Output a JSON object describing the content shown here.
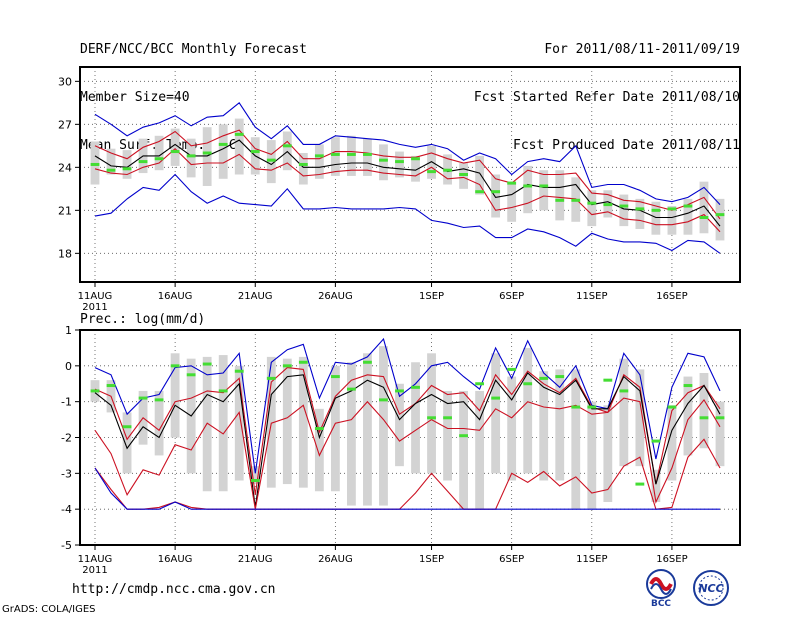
{
  "header": {
    "title": "DERF/NCC/BCC Monthly Forecast",
    "member_size": "Member Size=40",
    "variable": "Mean Surf. Temp.: °C",
    "period": "For 2011/08/11-2011/09/19",
    "started": "Fcst Started Refer Date 2011/08/10",
    "produced": "Fcst Produced Date 2011/08/11"
  },
  "footer": {
    "url": "http://cmdp.ncc.cma.gov.cn",
    "credit": "GrADS: COLA/IGES",
    "logo_left": "BCC",
    "logo_right": "NCC"
  },
  "colors": {
    "box": "#d3d3d3",
    "median": "#44dd33",
    "mean": "#000000",
    "spread": "#cc1122",
    "extreme": "#0000cc"
  },
  "chart_data": [
    {
      "type": "line",
      "title": "Mean Surf. Temp.: °C",
      "ylim": [
        16,
        31
      ],
      "yticks": [
        18,
        21,
        24,
        27,
        30
      ],
      "xticks": [
        {
          "day": 0,
          "label": "11AUG",
          "sub": "2011"
        },
        {
          "day": 5,
          "label": "16AUG"
        },
        {
          "day": 10,
          "label": "21AUG"
        },
        {
          "day": 15,
          "label": "26AUG"
        },
        {
          "day": 21,
          "label": "1SEP"
        },
        {
          "day": 26,
          "label": "6SEP"
        },
        {
          "day": 31,
          "label": "11SEP"
        },
        {
          "day": 36,
          "label": "16SEP"
        }
      ],
      "series": [
        {
          "name": "max",
          "values": [
            27.7,
            27.0,
            26.2,
            26.8,
            27.1,
            27.6,
            26.9,
            27.5,
            27.6,
            28.5,
            26.8,
            26.0,
            26.9,
            25.6,
            25.6,
            26.2,
            26.1,
            26.0,
            25.9,
            25.6,
            25.4,
            25.6,
            25.3,
            24.5,
            25.0,
            24.6,
            23.5,
            24.4,
            24.6,
            24.4,
            25.5,
            22.6,
            22.8,
            22.8,
            22.4,
            21.8,
            21.6,
            21.9,
            22.6,
            21.4
          ]
        },
        {
          "name": "upper",
          "values": [
            25.5,
            25.0,
            24.6,
            25.4,
            25.8,
            26.5,
            25.5,
            25.7,
            26.2,
            26.6,
            25.3,
            24.9,
            25.8,
            24.6,
            24.6,
            25.1,
            25.1,
            25.0,
            24.8,
            24.7,
            24.7,
            25.0,
            24.6,
            24.3,
            24.5,
            23.2,
            22.9,
            23.8,
            23.5,
            23.5,
            23.6,
            22.2,
            22.1,
            21.7,
            21.6,
            21.3,
            21.0,
            21.4,
            21.9,
            20.4
          ]
        },
        {
          "name": "mean",
          "values": [
            24.8,
            24.1,
            24.0,
            24.8,
            24.8,
            25.6,
            24.8,
            24.8,
            25.3,
            25.9,
            24.8,
            24.2,
            25.1,
            24.0,
            24.0,
            24.2,
            24.3,
            24.3,
            24.0,
            23.9,
            23.8,
            24.4,
            23.7,
            23.9,
            23.6,
            21.9,
            22.1,
            22.8,
            22.6,
            22.6,
            22.8,
            21.4,
            21.6,
            21.1,
            21.0,
            20.5,
            20.5,
            20.8,
            21.3,
            19.9
          ]
        },
        {
          "name": "lower",
          "values": [
            23.9,
            23.6,
            23.5,
            24.0,
            24.3,
            25.3,
            24.2,
            24.3,
            24.3,
            24.9,
            23.9,
            23.8,
            24.3,
            23.4,
            23.5,
            23.7,
            23.8,
            23.8,
            23.6,
            23.5,
            23.4,
            24.0,
            23.2,
            23.3,
            22.8,
            21.0,
            21.2,
            21.5,
            22.0,
            21.9,
            21.8,
            20.7,
            20.9,
            20.4,
            20.3,
            20.0,
            20.0,
            20.2,
            20.7,
            19.5
          ]
        },
        {
          "name": "min",
          "values": [
            20.6,
            20.8,
            21.8,
            22.6,
            22.4,
            23.5,
            22.3,
            21.5,
            22.0,
            21.5,
            21.4,
            21.3,
            22.5,
            21.1,
            21.1,
            21.2,
            21.1,
            21.1,
            21.1,
            21.2,
            21.1,
            20.3,
            20.1,
            19.8,
            19.9,
            19.1,
            19.1,
            19.7,
            19.5,
            19.1,
            18.5,
            19.4,
            19.0,
            18.8,
            18.8,
            18.7,
            18.2,
            18.9,
            18.8,
            18.0
          ]
        }
      ],
      "boxes": {
        "low": [
          22.8,
          23.5,
          23.2,
          23.6,
          23.8,
          24.1,
          23.3,
          22.7,
          23.2,
          23.5,
          23.5,
          22.9,
          23.8,
          22.8,
          23.2,
          23.4,
          23.4,
          23.4,
          23.1,
          23.3,
          23.0,
          23.2,
          22.8,
          22.5,
          22.1,
          20.5,
          20.2,
          20.8,
          21.0,
          20.3,
          20.2,
          19.9,
          20.5,
          19.9,
          19.7,
          19.3,
          19.3,
          19.3,
          19.4,
          18.9
        ],
        "high": [
          25.8,
          25.3,
          25.2,
          26.0,
          26.2,
          26.7,
          26.0,
          26.8,
          27.0,
          27.4,
          26.1,
          25.9,
          26.5,
          25.0,
          25.6,
          26.1,
          26.2,
          26.0,
          25.6,
          25.1,
          24.8,
          25.5,
          24.9,
          24.3,
          24.8,
          23.5,
          23.0,
          24.1,
          23.8,
          23.8,
          23.3,
          22.4,
          22.4,
          22.1,
          21.8,
          21.6,
          21.3,
          21.8,
          23.0,
          21.8
        ],
        "median": [
          24.2,
          23.8,
          23.9,
          24.4,
          24.6,
          25.1,
          24.8,
          25.0,
          25.6,
          26.3,
          25.1,
          24.5,
          25.5,
          24.2,
          24.8,
          24.9,
          24.9,
          24.9,
          24.5,
          24.4,
          24.6,
          23.7,
          23.8,
          23.5,
          22.3,
          22.3,
          22.9,
          22.7,
          22.7,
          21.7,
          21.7,
          21.5,
          21.4,
          21.3,
          21.1,
          21.0,
          21.1,
          21.3,
          20.5,
          20.7
        ]
      }
    },
    {
      "type": "line",
      "title": "Prec.: log(mm/d)",
      "ylim": [
        -5,
        1
      ],
      "yticks": [
        -5,
        -4,
        -3,
        -2,
        -1,
        0,
        1
      ],
      "xticks": [
        {
          "day": 0,
          "label": "11AUG",
          "sub": "2011"
        },
        {
          "day": 5,
          "label": "16AUG"
        },
        {
          "day": 10,
          "label": "21AUG"
        },
        {
          "day": 15,
          "label": "26AUG"
        },
        {
          "day": 21,
          "label": "1SEP"
        },
        {
          "day": 26,
          "label": "6SEP"
        },
        {
          "day": 31,
          "label": "11SEP"
        },
        {
          "day": 36,
          "label": "16SEP"
        }
      ],
      "series": [
        {
          "name": "max",
          "values": [
            -0.05,
            -0.25,
            -1.35,
            -0.9,
            -0.8,
            -0.05,
            0.0,
            -0.25,
            -0.2,
            0.35,
            -3.0,
            0.1,
            0.45,
            0.6,
            -0.9,
            0.1,
            0.05,
            0.25,
            0.75,
            -0.85,
            -0.5,
            0.0,
            0.1,
            -0.3,
            -0.65,
            0.5,
            -0.35,
            0.7,
            -0.2,
            -0.6,
            0.0,
            -1.1,
            -1.2,
            0.35,
            -0.25,
            -2.6,
            -0.6,
            0.35,
            0.25,
            -0.7
          ]
        },
        {
          "name": "upper",
          "values": [
            -0.65,
            -0.85,
            -2.05,
            -1.45,
            -1.8,
            -1.0,
            -0.9,
            -0.7,
            -0.75,
            -0.35,
            -3.6,
            -0.45,
            -0.05,
            -0.1,
            -1.85,
            -0.85,
            -0.4,
            -0.25,
            -0.3,
            -1.35,
            -1.05,
            -0.55,
            -0.8,
            -0.75,
            -1.25,
            -0.25,
            -0.8,
            -0.15,
            -0.5,
            -0.75,
            -0.35,
            -1.15,
            -1.3,
            -0.25,
            -0.6,
            -3.3,
            -1.25,
            -0.75,
            -0.55,
            -1.2
          ]
        },
        {
          "name": "mean",
          "values": [
            -0.75,
            -1.1,
            -2.3,
            -1.7,
            -2.0,
            -1.1,
            -1.4,
            -0.8,
            -1.0,
            -0.5,
            -3.95,
            -0.8,
            -0.3,
            -0.25,
            -2.0,
            -0.9,
            -0.7,
            -0.4,
            -0.6,
            -1.5,
            -1.05,
            -0.8,
            -1.05,
            -1.0,
            -1.5,
            -0.4,
            -0.95,
            -0.2,
            -0.6,
            -0.8,
            -0.4,
            -1.2,
            -1.2,
            -0.3,
            -0.7,
            -3.3,
            -1.8,
            -1.05,
            -0.55,
            -1.35
          ]
        },
        {
          "name": "lower",
          "values": [
            -1.8,
            -2.45,
            -3.6,
            -2.9,
            -3.05,
            -2.2,
            -2.35,
            -1.6,
            -1.9,
            -1.3,
            -4.0,
            -1.6,
            -1.45,
            -1.1,
            -2.5,
            -1.6,
            -1.5,
            -1.0,
            -1.5,
            -2.1,
            -1.8,
            -1.5,
            -1.75,
            -1.75,
            -1.8,
            -1.2,
            -1.45,
            -1.0,
            -1.15,
            -1.2,
            -1.1,
            -1.35,
            -1.3,
            -0.9,
            -1.0,
            -3.8,
            -2.85,
            -1.5,
            -0.95,
            -1.7
          ]
        },
        {
          "name": "low",
          "values": [
            -2.85,
            -3.45,
            -4.0,
            -4.0,
            -3.95,
            -3.8,
            -3.95,
            -4.0,
            -4.0,
            -4.0,
            -4.0,
            -4.0,
            -4.0,
            -4.0,
            -4.0,
            -4.0,
            -4.0,
            -4.0,
            -4.0,
            -4.0,
            -3.55,
            -3.0,
            -3.5,
            -4.0,
            -4.0,
            -4.0,
            -3.0,
            -3.25,
            -2.95,
            -3.35,
            -3.1,
            -3.55,
            -3.45,
            -2.8,
            -2.55,
            -4.0,
            -3.95,
            -2.55,
            -2.05,
            -2.85
          ]
        },
        {
          "name": "min",
          "values": [
            -2.85,
            -3.55,
            -4.0,
            -4.0,
            -4.0,
            -3.8,
            -4.0,
            -4.0,
            -4.0,
            -4.0,
            -4.0,
            -4.0,
            -4.0,
            -4.0,
            -4.0,
            -4.0,
            -4.0,
            -4.0,
            -4.0,
            -4.0,
            -4.0,
            -4.0,
            -4.0,
            -4.0,
            -4.0,
            -4.0,
            -4.0,
            -4.0,
            -4.0,
            -4.0,
            -4.0,
            -4.0,
            -4.0,
            -4.0,
            -4.0,
            -4.0,
            -4.0,
            -4.0,
            -4.0,
            -4.0
          ]
        }
      ],
      "boxes": {
        "low": [
          -1.0,
          -1.3,
          -3.0,
          -2.2,
          -2.5,
          -2.0,
          -3.0,
          -3.5,
          -3.5,
          -3.2,
          -3.3,
          -3.4,
          -3.3,
          -3.4,
          -3.5,
          -3.5,
          -3.9,
          -3.9,
          -3.9,
          -2.8,
          -3.0,
          -3.0,
          -3.2,
          -4.0,
          -4.0,
          -3.0,
          -3.2,
          -3.0,
          -3.2,
          -3.2,
          -4.0,
          -4.0,
          -3.8,
          -2.8,
          -2.8,
          -3.8,
          -3.2,
          -2.5,
          -2.3,
          -2.8
        ],
        "high": [
          -0.4,
          -0.4,
          -1.3,
          -0.7,
          -0.7,
          0.35,
          0.2,
          0.25,
          0.3,
          0.0,
          -2.8,
          0.25,
          0.2,
          0.25,
          -1.2,
          0.0,
          0.1,
          0.35,
          0.55,
          -0.5,
          0.1,
          0.35,
          -0.7,
          -0.7,
          -0.7,
          0.35,
          -0.3,
          0.5,
          -0.15,
          -0.1,
          -0.1,
          -1.0,
          -1.1,
          0.2,
          -0.1,
          -2.9,
          -1.1,
          -0.3,
          -0.2,
          -1.0
        ],
        "median": [
          -0.7,
          -0.55,
          -1.7,
          -0.9,
          -0.95,
          0.0,
          -0.25,
          0.05,
          -0.7,
          -0.15,
          -3.2,
          -0.35,
          0.0,
          0.1,
          -1.75,
          -0.3,
          -0.65,
          0.1,
          -0.95,
          -0.7,
          -0.6,
          -1.45,
          -1.45,
          -1.95,
          -0.5,
          -0.9,
          -0.1,
          -0.5,
          -0.35,
          -0.3,
          -1.15,
          -1.15,
          -0.4,
          -0.7,
          -3.3,
          -2.1,
          -1.15,
          -0.55,
          -1.45,
          -1.45
        ]
      }
    }
  ]
}
